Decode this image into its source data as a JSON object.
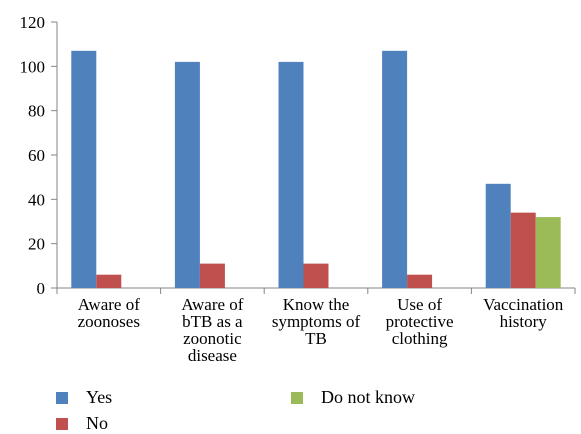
{
  "chart_data": {
    "type": "bar",
    "categories": [
      [
        "Aware of",
        "zoonoses"
      ],
      [
        "Aware of",
        "bTB as a",
        "zoonotic",
        "disease"
      ],
      [
        "Know the",
        "symptoms of",
        "TB"
      ],
      [
        "Use of",
        "protective",
        "clothing"
      ],
      [
        "Vaccination",
        "history"
      ]
    ],
    "series": [
      {
        "name": "Yes",
        "color": "#4F81BD",
        "values": [
          107,
          102,
          102,
          107,
          47
        ]
      },
      {
        "name": "No",
        "color": "#C0504D",
        "values": [
          6,
          11,
          11,
          6,
          34
        ]
      },
      {
        "name": "Do not know",
        "color": "#9BBB59",
        "values": [
          null,
          null,
          null,
          null,
          32
        ]
      }
    ],
    "ylim": [
      0,
      120
    ],
    "yticks": [
      0,
      20,
      40,
      60,
      80,
      100,
      120
    ],
    "legend_position": "bottom",
    "grid": false
  }
}
